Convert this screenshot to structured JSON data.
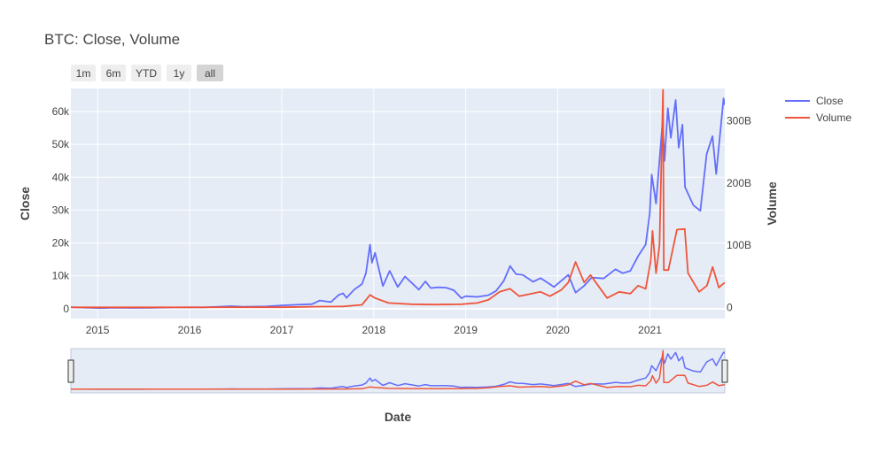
{
  "chart_data": {
    "type": "line",
    "title": "BTC: Close, Volume",
    "xlabel": "Date",
    "ylabel": "Close",
    "y2label": "Volume",
    "x_ticks": [
      "2015",
      "2016",
      "2017",
      "2018",
      "2019",
      "2020",
      "2021"
    ],
    "x_range": [
      "2014-09-17",
      "2021-10-25"
    ],
    "ylim": [
      -3000,
      67000
    ],
    "y_ticks": [
      0,
      10000,
      20000,
      30000,
      40000,
      50000,
      60000
    ],
    "y_tick_labels": [
      "0",
      "10k",
      "20k",
      "30k",
      "40k",
      "50k",
      "60k"
    ],
    "y2lim": [
      -18000000000,
      352000000000
    ],
    "y2_ticks": [
      0,
      100000000000,
      200000000000,
      300000000000
    ],
    "y2_tick_labels": [
      "0",
      "100B",
      "200B",
      "300B"
    ],
    "grid": true,
    "legend": "top-right",
    "range_selector": [
      {
        "label": "1m",
        "active": false
      },
      {
        "label": "6m",
        "active": false
      },
      {
        "label": "YTD",
        "active": false
      },
      {
        "label": "1y",
        "active": false
      },
      {
        "label": "all",
        "active": true
      }
    ],
    "range_slider": true,
    "series": [
      {
        "name": "Close",
        "axis": "y",
        "color": "#636efa",
        "points": [
          [
            "2014-09-17",
            457
          ],
          [
            "2014-11-01",
            325
          ],
          [
            "2015-01-14",
            178
          ],
          [
            "2015-03-01",
            260
          ],
          [
            "2015-06-01",
            225
          ],
          [
            "2015-08-01",
            280
          ],
          [
            "2015-11-04",
            400
          ],
          [
            "2016-01-01",
            430
          ],
          [
            "2016-03-01",
            420
          ],
          [
            "2016-06-16",
            760
          ],
          [
            "2016-08-01",
            600
          ],
          [
            "2016-11-01",
            700
          ],
          [
            "2017-01-01",
            1000
          ],
          [
            "2017-03-01",
            1200
          ],
          [
            "2017-05-01",
            1400
          ],
          [
            "2017-06-01",
            2500
          ],
          [
            "2017-07-15",
            2000
          ],
          [
            "2017-08-15",
            4200
          ],
          [
            "2017-09-01",
            4700
          ],
          [
            "2017-09-15",
            3300
          ],
          [
            "2017-10-15",
            5800
          ],
          [
            "2017-11-15",
            7500
          ],
          [
            "2017-12-01",
            10800
          ],
          [
            "2017-12-17",
            19500
          ],
          [
            "2017-12-25",
            14000
          ],
          [
            "2018-01-06",
            17000
          ],
          [
            "2018-02-06",
            6900
          ],
          [
            "2018-03-05",
            11500
          ],
          [
            "2018-04-06",
            6600
          ],
          [
            "2018-05-05",
            9800
          ],
          [
            "2018-06-29",
            5800
          ],
          [
            "2018-07-25",
            8300
          ],
          [
            "2018-08-15",
            6300
          ],
          [
            "2018-09-15",
            6500
          ],
          [
            "2018-10-15",
            6400
          ],
          [
            "2018-11-15",
            5600
          ],
          [
            "2018-12-15",
            3200
          ],
          [
            "2019-01-01",
            3800
          ],
          [
            "2019-02-15",
            3600
          ],
          [
            "2019-04-01",
            4100
          ],
          [
            "2019-05-01",
            5400
          ],
          [
            "2019-06-01",
            8500
          ],
          [
            "2019-06-26",
            13000
          ],
          [
            "2019-07-20",
            10500
          ],
          [
            "2019-08-15",
            10300
          ],
          [
            "2019-09-25",
            8200
          ],
          [
            "2019-10-25",
            9300
          ],
          [
            "2019-11-20",
            8000
          ],
          [
            "2019-12-17",
            6600
          ],
          [
            "2020-02-12",
            10300
          ],
          [
            "2020-03-12",
            4900
          ],
          [
            "2020-04-15",
            7000
          ],
          [
            "2020-05-15",
            9500
          ],
          [
            "2020-07-01",
            9200
          ],
          [
            "2020-08-17",
            12000
          ],
          [
            "2020-09-15",
            10800
          ],
          [
            "2020-10-15",
            11500
          ],
          [
            "2020-11-15",
            16000
          ],
          [
            "2020-12-15",
            19500
          ],
          [
            "2020-12-31",
            29000
          ],
          [
            "2021-01-08",
            40800
          ],
          [
            "2021-01-25",
            32000
          ],
          [
            "2021-02-20",
            57000
          ],
          [
            "2021-02-28",
            45000
          ],
          [
            "2021-03-13",
            61000
          ],
          [
            "2021-03-25",
            52000
          ],
          [
            "2021-04-13",
            63500
          ],
          [
            "2021-04-25",
            49000
          ],
          [
            "2021-05-10",
            56000
          ],
          [
            "2021-05-20",
            37000
          ],
          [
            "2021-06-22",
            31500
          ],
          [
            "2021-07-20",
            29800
          ],
          [
            "2021-08-14",
            47000
          ],
          [
            "2021-09-06",
            52500
          ],
          [
            "2021-09-21",
            41000
          ],
          [
            "2021-10-20",
            64000
          ],
          [
            "2021-10-25",
            62000
          ]
        ]
      },
      {
        "name": "Volume",
        "axis": "y2",
        "color": "#ef553b",
        "points": [
          [
            "2014-09-17",
            21000000
          ],
          [
            "2015-01-14",
            50000000
          ],
          [
            "2015-06-01",
            20000000
          ],
          [
            "2016-01-01",
            60000000
          ],
          [
            "2016-06-16",
            150000000
          ],
          [
            "2017-01-01",
            200000000
          ],
          [
            "2017-06-01",
            1200000000
          ],
          [
            "2017-09-01",
            1500000000
          ],
          [
            "2017-11-15",
            4000000000
          ],
          [
            "2017-12-17",
            20000000000
          ],
          [
            "2018-01-06",
            15000000000
          ],
          [
            "2018-03-01",
            7000000000
          ],
          [
            "2018-06-01",
            5000000000
          ],
          [
            "2018-09-01",
            4500000000
          ],
          [
            "2018-12-15",
            5000000000
          ],
          [
            "2019-02-15",
            7000000000
          ],
          [
            "2019-04-01",
            12000000000
          ],
          [
            "2019-05-15",
            25000000000
          ],
          [
            "2019-06-26",
            30000000000
          ],
          [
            "2019-08-01",
            18000000000
          ],
          [
            "2019-10-25",
            25000000000
          ],
          [
            "2019-12-01",
            18000000000
          ],
          [
            "2020-01-15",
            28000000000
          ],
          [
            "2020-02-12",
            40000000000
          ],
          [
            "2020-03-12",
            73000000000
          ],
          [
            "2020-04-15",
            40000000000
          ],
          [
            "2020-05-10",
            52000000000
          ],
          [
            "2020-07-15",
            15000000000
          ],
          [
            "2020-09-01",
            25000000000
          ],
          [
            "2020-10-15",
            22000000000
          ],
          [
            "2020-11-15",
            35000000000
          ],
          [
            "2020-12-15",
            30000000000
          ],
          [
            "2021-01-04",
            75000000000
          ],
          [
            "2021-01-11",
            123000000000
          ],
          [
            "2021-01-25",
            55000000000
          ],
          [
            "2021-02-08",
            100000000000
          ],
          [
            "2021-02-22",
            350000000000
          ],
          [
            "2021-02-25",
            60000000000
          ],
          [
            "2021-03-15",
            60000000000
          ],
          [
            "2021-04-18",
            125000000000
          ],
          [
            "2021-05-19",
            126000000000
          ],
          [
            "2021-06-01",
            55000000000
          ],
          [
            "2021-07-15",
            25000000000
          ],
          [
            "2021-08-15",
            35000000000
          ],
          [
            "2021-09-07",
            65000000000
          ],
          [
            "2021-10-01",
            32000000000
          ],
          [
            "2021-10-25",
            40000000000
          ]
        ]
      }
    ]
  }
}
